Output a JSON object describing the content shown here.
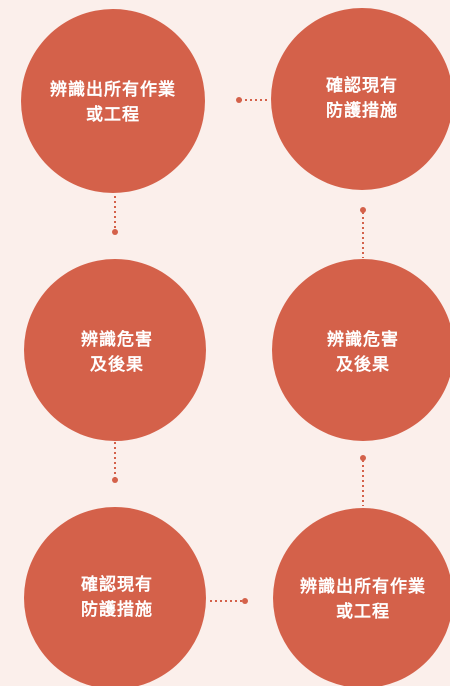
{
  "nodes": [
    {
      "lines": [
        "辨識出所有作業",
        "或工程"
      ]
    },
    {
      "lines": [
        "確認現有",
        "防護措施"
      ]
    },
    {
      "lines": [
        "辨識危害",
        "及後果"
      ]
    },
    {
      "lines": [
        "辨識危害",
        "及後果"
      ]
    },
    {
      "lines": [
        "確認現有",
        "防護措施"
      ]
    },
    {
      "lines": [
        "辨識出所有作業",
        "或工程"
      ]
    }
  ]
}
